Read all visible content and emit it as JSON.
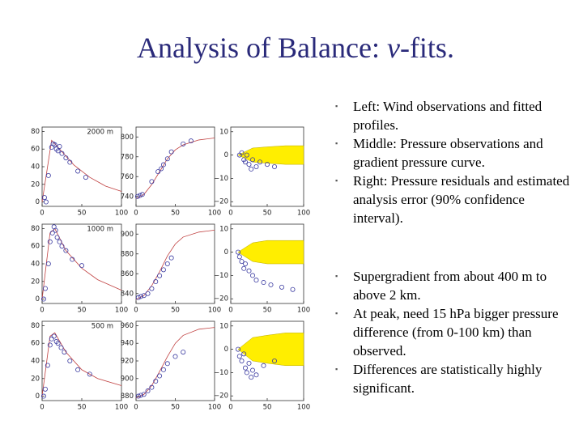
{
  "title": {
    "before": "Analysis of Balance: ",
    "symbol": "v",
    "after": "-fits."
  },
  "bullets_top": [
    "Left: Wind observations and fitted profiles.",
    "Middle: Pressure observations and gradient pressure curve.",
    "Right: Pressure residuals and estimated analysis error (90% confidence interval)."
  ],
  "bullets_bottom": [
    "Supergradient from about 400 m to above 2 km.",
    "At peak, need 15 hPa bigger pressure difference (from 0-100 km) than observed.",
    "Differences are statistically highly significant."
  ],
  "panels": [
    {
      "kind": "wind",
      "label": "2000 m",
      "xlim": [
        0,
        100
      ],
      "ylim": [
        -5,
        85
      ],
      "xticks": [
        0,
        50,
        100
      ],
      "yticks": [
        0,
        20,
        40,
        60,
        80
      ],
      "points": {
        "x": [
          3,
          5,
          8,
          12,
          14,
          16,
          18,
          20,
          22,
          25,
          30,
          35,
          45,
          55
        ],
        "y": [
          5,
          0,
          30,
          62,
          66,
          65,
          60,
          58,
          63,
          55,
          50,
          45,
          35,
          28
        ]
      },
      "curve": {
        "x": [
          0,
          12,
          20,
          40,
          60,
          80,
          100
        ],
        "y": [
          0,
          70,
          62,
          42,
          28,
          18,
          12
        ]
      }
    },
    {
      "kind": "pressure",
      "xlim": [
        0,
        100
      ],
      "ylim": [
        730,
        810
      ],
      "xticks": [
        0,
        50,
        100
      ],
      "yticks": [
        740,
        760,
        780,
        800
      ],
      "points": {
        "x": [
          2,
          5,
          8,
          20,
          28,
          32,
          35,
          40,
          45,
          60,
          70
        ],
        "y": [
          740,
          741,
          742,
          755,
          765,
          768,
          772,
          778,
          785,
          793,
          796
        ]
      },
      "curve": {
        "x": [
          0,
          10,
          20,
          30,
          40,
          50,
          60,
          80,
          100
        ],
        "y": [
          738,
          742,
          752,
          765,
          778,
          787,
          792,
          797,
          799
        ]
      }
    },
    {
      "kind": "residual",
      "xlim": [
        0,
        100
      ],
      "ylim": [
        -22,
        12
      ],
      "xticks": [
        0,
        50,
        100
      ],
      "yticks": [
        10,
        0,
        {
          "value": -10,
          "label": "−10"
        },
        {
          "value": -20,
          "label": "−20"
        }
      ],
      "points": {
        "x": [
          12,
          15,
          18,
          20,
          22,
          25,
          28,
          30,
          35,
          40,
          50,
          60
        ],
        "y": [
          0,
          1,
          -2,
          -3,
          0,
          -4,
          -6,
          -2,
          -5,
          -3,
          -4,
          -5
        ]
      },
      "band": {
        "x": [
          10,
          30,
          50,
          75,
          100
        ],
        "upper": [
          0,
          3,
          3.5,
          4,
          4
        ],
        "lower": [
          0,
          -3,
          -3.5,
          -4,
          -4
        ]
      }
    },
    {
      "kind": "wind",
      "label": "1000 m",
      "xlim": [
        0,
        100
      ],
      "ylim": [
        -5,
        85
      ],
      "xticks": [
        0,
        50,
        100
      ],
      "yticks": [
        0,
        20,
        40,
        60,
        80
      ],
      "points": {
        "x": [
          2,
          4,
          8,
          10,
          13,
          15,
          17,
          19,
          22,
          25,
          30,
          38,
          50
        ],
        "y": [
          0,
          12,
          40,
          65,
          75,
          82,
          78,
          70,
          65,
          60,
          55,
          45,
          38
        ]
      },
      "curve": {
        "x": [
          0,
          10,
          16,
          30,
          50,
          70,
          100
        ],
        "y": [
          0,
          75,
          80,
          55,
          35,
          22,
          10
        ]
      }
    },
    {
      "kind": "pressure",
      "xlim": [
        0,
        100
      ],
      "ylim": [
        830,
        910
      ],
      "xticks": [
        0,
        50,
        100
      ],
      "yticks": [
        840,
        860,
        880,
        900
      ],
      "points": {
        "x": [
          3,
          6,
          10,
          15,
          20,
          25,
          30,
          35,
          40,
          45
        ],
        "y": [
          836,
          837,
          838,
          840,
          845,
          852,
          858,
          864,
          870,
          876
        ]
      },
      "curve": {
        "x": [
          0,
          10,
          20,
          30,
          40,
          50,
          60,
          80,
          100
        ],
        "y": [
          834,
          838,
          848,
          862,
          878,
          890,
          897,
          902,
          904
        ]
      }
    },
    {
      "kind": "residual",
      "xlim": [
        0,
        100
      ],
      "ylim": [
        -22,
        12
      ],
      "xticks": [
        0,
        50,
        100
      ],
      "yticks": [
        10,
        0,
        {
          "value": -10,
          "label": "−10"
        },
        {
          "value": -20,
          "label": "−20"
        }
      ],
      "points": {
        "x": [
          10,
          12,
          15,
          18,
          20,
          25,
          30,
          35,
          45,
          55,
          70,
          85
        ],
        "y": [
          0,
          -2,
          -4,
          -7,
          -5,
          -8,
          -10,
          -12,
          -13,
          -14,
          -15,
          -16
        ]
      },
      "band": {
        "x": [
          10,
          30,
          50,
          75,
          100
        ],
        "upper": [
          0,
          4,
          5,
          5,
          5
        ],
        "lower": [
          0,
          -4,
          -5,
          -5,
          -5
        ]
      }
    },
    {
      "kind": "wind",
      "label": "500 m",
      "xlim": [
        0,
        100
      ],
      "ylim": [
        -5,
        85
      ],
      "xticks": [
        0,
        50,
        100
      ],
      "yticks": [
        0,
        20,
        40,
        60,
        80
      ],
      "points": {
        "x": [
          2,
          4,
          7,
          10,
          12,
          15,
          18,
          20,
          24,
          28,
          35,
          45,
          60
        ],
        "y": [
          0,
          8,
          35,
          58,
          65,
          68,
          62,
          60,
          55,
          50,
          40,
          30,
          25
        ]
      },
      "curve": {
        "x": [
          0,
          10,
          16,
          30,
          50,
          70,
          100
        ],
        "y": [
          0,
          68,
          72,
          50,
          30,
          20,
          12
        ]
      }
    },
    {
      "kind": "pressure",
      "xlim": [
        0,
        100
      ],
      "ylim": [
        875,
        965
      ],
      "xticks": [
        0,
        50,
        100
      ],
      "yticks": [
        880,
        900,
        920,
        940,
        960
      ],
      "points": {
        "x": [
          3,
          6,
          10,
          15,
          20,
          25,
          30,
          35,
          40,
          50,
          60
        ],
        "y": [
          880,
          881,
          882,
          886,
          890,
          897,
          903,
          910,
          917,
          925,
          930
        ]
      },
      "curve": {
        "x": [
          0,
          10,
          20,
          30,
          40,
          50,
          60,
          80,
          100
        ],
        "y": [
          878,
          882,
          892,
          908,
          925,
          940,
          949,
          956,
          958
        ]
      }
    },
    {
      "kind": "residual",
      "xlim": [
        0,
        100
      ],
      "ylim": [
        -22,
        12
      ],
      "xticks": [
        0,
        50,
        100
      ],
      "yticks": [
        10,
        0,
        {
          "value": -10,
          "label": "−10"
        },
        {
          "value": -20,
          "label": "−20"
        }
      ],
      "points": {
        "x": [
          10,
          12,
          15,
          18,
          20,
          22,
          25,
          28,
          30,
          35,
          45,
          60
        ],
        "y": [
          0,
          -3,
          -5,
          -2,
          -8,
          -10,
          -6,
          -12,
          -9,
          -11,
          -7,
          -5
        ]
      },
      "band": {
        "x": [
          10,
          30,
          50,
          75,
          100
        ],
        "upper": [
          0,
          5,
          6,
          7,
          7
        ],
        "lower": [
          0,
          -5,
          -6,
          -7,
          -7
        ]
      }
    }
  ]
}
